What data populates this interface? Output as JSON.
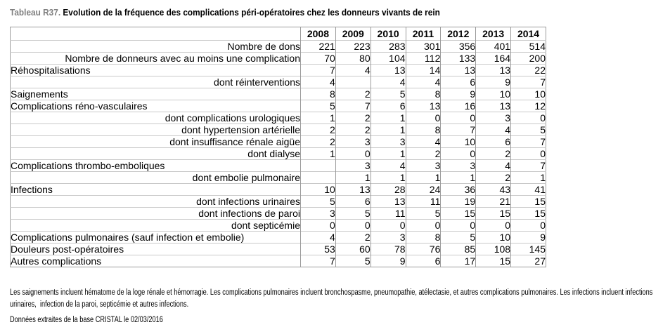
{
  "title": {
    "prefix": "Tableau R37.",
    "text": "Evolution de la fréquence des complications péri-opératoires chez les donneurs vivants de rein"
  },
  "colors": {
    "title_prefix_gray": "#808080",
    "border_vertical": "#9b9b9b",
    "border_horizontal": "#c9c9c9",
    "text": "#000000",
    "background": "#ffffff"
  },
  "chart_data": {
    "type": "table",
    "title": "Tableau R37. Evolution de la fréquence des complications péri-opératoires chez les donneurs vivants de rein",
    "columns": [
      "2008",
      "2009",
      "2010",
      "2011",
      "2012",
      "2013",
      "2014"
    ],
    "rows": [
      {
        "label": "Nombre de dons",
        "align": "right",
        "values": [
          "221",
          "223",
          "283",
          "301",
          "356",
          "401",
          "514"
        ]
      },
      {
        "label": "Nombre de donneurs avec au moins une complication",
        "align": "right",
        "values": [
          "70",
          "80",
          "104",
          "112",
          "133",
          "164",
          "200"
        ]
      },
      {
        "label": "Réhospitalisations",
        "align": "left",
        "values": [
          "7",
          "4",
          "13",
          "14",
          "13",
          "13",
          "22"
        ]
      },
      {
        "label": "dont réinterventions",
        "align": "right",
        "values": [
          "4",
          "",
          "4",
          "4",
          "6",
          "9",
          "7"
        ]
      },
      {
        "label": "Saignements",
        "align": "left",
        "values": [
          "8",
          "2",
          "5",
          "8",
          "9",
          "10",
          "10"
        ]
      },
      {
        "label": "Complications réno-vasculaires",
        "align": "left",
        "values": [
          "5",
          "7",
          "6",
          "13",
          "16",
          "13",
          "12"
        ]
      },
      {
        "label": "dont complications urologiques",
        "align": "right",
        "values": [
          "1",
          "2",
          "1",
          "0",
          "0",
          "3",
          "0"
        ]
      },
      {
        "label": "dont hypertension artérielle",
        "align": "right",
        "values": [
          "2",
          "2",
          "1",
          "8",
          "7",
          "4",
          "5"
        ]
      },
      {
        "label": "dont insuffisance rénale aigüe",
        "align": "right",
        "values": [
          "2",
          "3",
          "3",
          "4",
          "10",
          "6",
          "7"
        ]
      },
      {
        "label": "dont dialyse",
        "align": "right",
        "values": [
          "1",
          "0",
          "1",
          "2",
          "0",
          "2",
          "0"
        ]
      },
      {
        "label": "Complications thrombo-emboliques",
        "align": "left",
        "values": [
          "",
          "3",
          "4",
          "3",
          "3",
          "4",
          "7"
        ]
      },
      {
        "label": "dont embolie pulmonaire",
        "align": "right",
        "values": [
          "",
          "1",
          "1",
          "1",
          "1",
          "2",
          "1"
        ]
      },
      {
        "label": "Infections",
        "align": "left",
        "values": [
          "10",
          "13",
          "28",
          "24",
          "36",
          "43",
          "41"
        ]
      },
      {
        "label": "dont infections urinaires",
        "align": "right",
        "values": [
          "5",
          "6",
          "13",
          "11",
          "19",
          "21",
          "15"
        ]
      },
      {
        "label": "dont infections de paroi",
        "align": "right",
        "values": [
          "3",
          "5",
          "11",
          "5",
          "15",
          "15",
          "15"
        ]
      },
      {
        "label": "dont septicémie",
        "align": "right",
        "values": [
          "0",
          "0",
          "0",
          "0",
          "0",
          "0",
          "0"
        ]
      },
      {
        "label": "Complications pulmonaires (sauf infection et embolie)",
        "align": "left",
        "values": [
          "4",
          "2",
          "3",
          "8",
          "5",
          "10",
          "9"
        ]
      },
      {
        "label": "Douleurs post-opératoires",
        "align": "left",
        "values": [
          "53",
          "60",
          "78",
          "76",
          "85",
          "108",
          "145"
        ]
      },
      {
        "label": "Autres complications",
        "align": "left",
        "values": [
          "7",
          "5",
          "9",
          "6",
          "17",
          "15",
          "27"
        ]
      }
    ],
    "notes": "Les saignements incluent hématome de la loge rénale et hémorragie. Les complications pulmonaires incluent bronchospasme, pneumopathie, atélectasie, et autres complications pulmonaires. Les infections incluent infections urinaires,  infection de la paroi, septicémie et autres infections.",
    "source": "Données extraites de la base CRISTAL le 02/03/2016"
  }
}
